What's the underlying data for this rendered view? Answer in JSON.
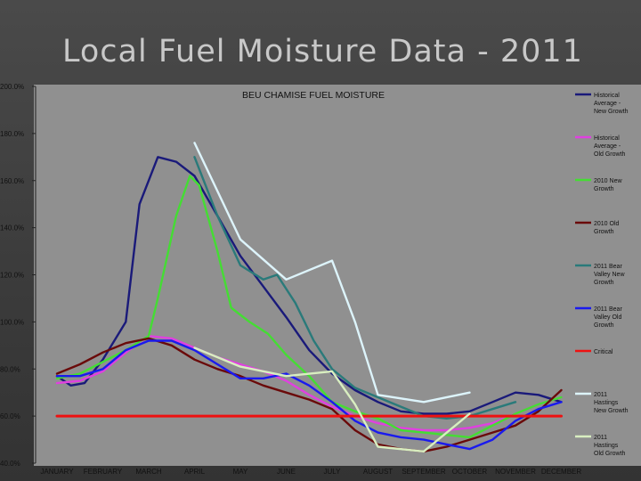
{
  "slide": {
    "title": "Local Fuel Moisture Data - 2011"
  },
  "chart_data": {
    "type": "line",
    "title": "BEU CHAMISE FUEL MOISTURE",
    "xlabel": "",
    "ylabel": "",
    "ylim": [
      40,
      200
    ],
    "yticks": [
      "40.0%",
      "60.0%",
      "80.0%",
      "100.0%",
      "120.0%",
      "140.0%",
      "160.0%",
      "180.0%",
      "200.0%"
    ],
    "categories": [
      "JANUARY",
      "FEBRUARY",
      "MARCH",
      "APRIL",
      "MAY",
      "JUNE",
      "JULY",
      "AUGUST",
      "SEPTEMBER",
      "OCTOBER",
      "NOVEMBER",
      "DECEMBER"
    ],
    "grid": false,
    "legend_position": "right",
    "series": [
      {
        "name": "Historical Average - New Growth",
        "color": "#1a1a7a",
        "points": [
          [
            0,
            77
          ],
          [
            0.3,
            73
          ],
          [
            0.6,
            74
          ],
          [
            1,
            84
          ],
          [
            1.5,
            100
          ],
          [
            1.8,
            150
          ],
          [
            2.2,
            170
          ],
          [
            2.6,
            168
          ],
          [
            3,
            162
          ],
          [
            3.5,
            145
          ],
          [
            4,
            128
          ],
          [
            4.5,
            115
          ],
          [
            5,
            102
          ],
          [
            5.5,
            88
          ],
          [
            6,
            78
          ],
          [
            6.5,
            71
          ],
          [
            7,
            66
          ],
          [
            7.5,
            62
          ],
          [
            8,
            61
          ],
          [
            8.5,
            61
          ],
          [
            9,
            62
          ],
          [
            9.5,
            66
          ],
          [
            10,
            70
          ],
          [
            10.5,
            69
          ],
          [
            11,
            66
          ]
        ]
      },
      {
        "name": "Historical Average - Old Growth",
        "color": "#e040e0",
        "points": [
          [
            0,
            74
          ],
          [
            0.5,
            75
          ],
          [
            1,
            79
          ],
          [
            1.5,
            87
          ],
          [
            2,
            94
          ],
          [
            2.5,
            93
          ],
          [
            3,
            89
          ],
          [
            3.5,
            85
          ],
          [
            4,
            82
          ],
          [
            4.5,
            79
          ],
          [
            5,
            75
          ],
          [
            5.5,
            69
          ],
          [
            6,
            64
          ],
          [
            6.5,
            60
          ],
          [
            7,
            57
          ],
          [
            7.5,
            55
          ],
          [
            8,
            54
          ],
          [
            8.5,
            54
          ],
          [
            9,
            55
          ],
          [
            9.5,
            57
          ],
          [
            10,
            61
          ],
          [
            10.5,
            65
          ],
          [
            11,
            68
          ]
        ]
      },
      {
        "name": "2010 New Growth",
        "color": "#44dd33",
        "points": [
          [
            0,
            76
          ],
          [
            0.5,
            78
          ],
          [
            1,
            83
          ],
          [
            1.5,
            88
          ],
          [
            2,
            94
          ],
          [
            2.2,
            110
          ],
          [
            2.6,
            145
          ],
          [
            2.9,
            162
          ],
          [
            3.1,
            158
          ],
          [
            3.5,
            130
          ],
          [
            3.8,
            106
          ],
          [
            4.2,
            100
          ],
          [
            4.6,
            95
          ],
          [
            5,
            86
          ],
          [
            5.5,
            77
          ],
          [
            6,
            66
          ],
          [
            6.5,
            62
          ],
          [
            7,
            59
          ],
          [
            7.5,
            54
          ],
          [
            8,
            53
          ],
          [
            8.5,
            52
          ],
          [
            9,
            51
          ],
          [
            9.5,
            56
          ],
          [
            10,
            61
          ],
          [
            10.5,
            65
          ],
          [
            11,
            68
          ]
        ]
      },
      {
        "name": "2010 Old Growth",
        "color": "#6a0a0a",
        "points": [
          [
            0,
            78
          ],
          [
            0.5,
            82
          ],
          [
            1,
            87
          ],
          [
            1.5,
            91
          ],
          [
            2,
            93
          ],
          [
            2.5,
            90
          ],
          [
            3,
            84
          ],
          [
            3.5,
            80
          ],
          [
            4,
            77
          ],
          [
            4.5,
            73
          ],
          [
            5,
            70
          ],
          [
            5.5,
            67
          ],
          [
            6,
            63
          ],
          [
            6.5,
            54
          ],
          [
            7,
            48
          ],
          [
            7.5,
            46
          ],
          [
            8,
            45
          ],
          [
            8.5,
            47
          ],
          [
            9,
            50
          ],
          [
            9.5,
            53
          ],
          [
            10,
            56
          ],
          [
            10.5,
            62
          ],
          [
            11,
            71
          ]
        ]
      },
      {
        "name": "2011 Bear Valley New Growth",
        "color": "#2a7a7a",
        "points": [
          [
            3,
            170
          ],
          [
            3.5,
            145
          ],
          [
            4,
            124
          ],
          [
            4.5,
            118
          ],
          [
            4.8,
            120
          ],
          [
            5.2,
            108
          ],
          [
            5.6,
            92
          ],
          [
            6,
            80
          ],
          [
            6.5,
            72
          ],
          [
            7,
            68
          ],
          [
            7.5,
            64
          ],
          [
            8,
            60
          ],
          [
            8.5,
            59
          ],
          [
            9,
            60
          ],
          [
            9.5,
            63
          ],
          [
            10,
            66
          ]
        ]
      },
      {
        "name": "2011 Bear Valley Old Growth",
        "color": "#1a1aee",
        "points": [
          [
            0,
            77
          ],
          [
            0.5,
            77
          ],
          [
            1,
            80
          ],
          [
            1.5,
            88
          ],
          [
            2,
            92
          ],
          [
            2.5,
            92
          ],
          [
            3,
            88
          ],
          [
            3.5,
            82
          ],
          [
            4,
            76
          ],
          [
            4.5,
            76
          ],
          [
            5,
            78
          ],
          [
            5.5,
            73
          ],
          [
            6,
            66
          ],
          [
            6.5,
            58
          ],
          [
            7,
            53
          ],
          [
            7.5,
            51
          ],
          [
            8,
            50
          ],
          [
            8.5,
            48
          ],
          [
            9,
            46
          ],
          [
            9.5,
            50
          ],
          [
            10,
            58
          ],
          [
            10.5,
            63
          ],
          [
            11,
            66
          ]
        ]
      },
      {
        "name": "Critical",
        "color": "#ee1111",
        "points": [
          [
            0,
            60
          ],
          [
            11,
            60
          ]
        ]
      },
      {
        "name": "2011 Hastings New Growth",
        "color": "#ddf4fb",
        "points": [
          [
            3,
            176
          ],
          [
            4,
            135
          ],
          [
            5,
            118
          ],
          [
            6,
            126
          ],
          [
            6.5,
            100
          ],
          [
            7,
            69
          ],
          [
            8,
            66
          ],
          [
            9,
            70
          ]
        ]
      },
      {
        "name": "2011 Hastings Old Growth",
        "color": "#d8eec0",
        "points": [
          [
            3,
            89
          ],
          [
            4,
            81
          ],
          [
            5,
            77
          ],
          [
            6,
            79
          ],
          [
            6.5,
            65
          ],
          [
            7,
            47
          ],
          [
            8,
            45
          ],
          [
            9,
            61
          ]
        ]
      }
    ]
  }
}
